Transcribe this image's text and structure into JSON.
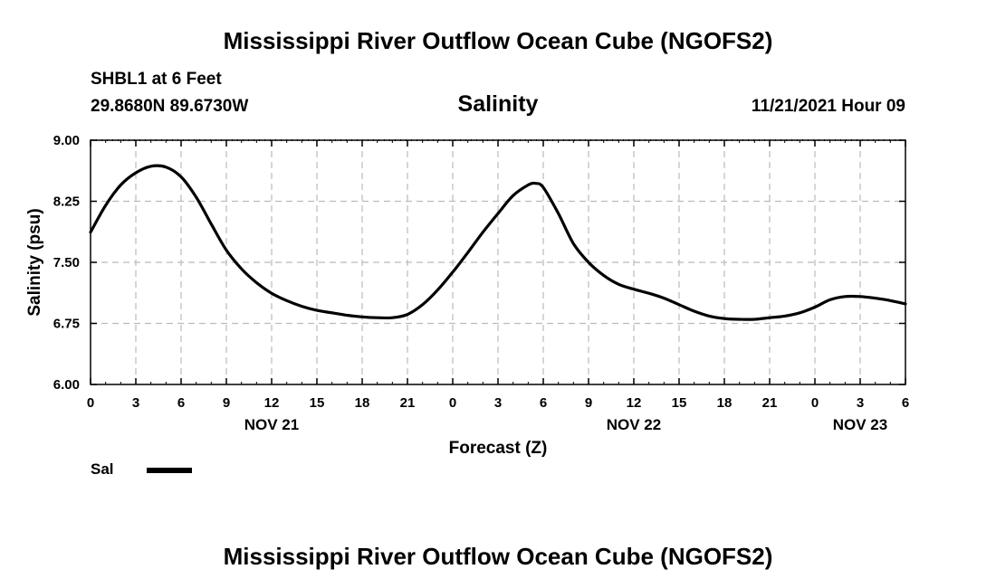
{
  "header": {
    "title": "Mississippi River Outflow Ocean Cube (NGOFS2)",
    "station": "SHBL1 at 6 Feet",
    "coordinates": "29.8680N  89.6730W",
    "datetime": "11/21/2021 Hour 09"
  },
  "footer": {
    "title": "Mississippi River Outflow Ocean Cube (NGOFS2)"
  },
  "legend": {
    "label": "Sal"
  },
  "chart_data": {
    "type": "line",
    "title": "Salinity",
    "xlabel": "Forecast (Z)",
    "ylabel": "Salinity (psu)",
    "xlim": [
      0,
      54
    ],
    "ylim": [
      6.0,
      9.0
    ],
    "grid": true,
    "legend_position": "bottom-left",
    "x_ticks": [
      0,
      3,
      6,
      9,
      12,
      15,
      18,
      21,
      24,
      27,
      30,
      33,
      36,
      39,
      42,
      45,
      48,
      51,
      54
    ],
    "x_tick_labels": [
      "0",
      "3",
      "6",
      "9",
      "12",
      "15",
      "18",
      "21",
      "0",
      "3",
      "6",
      "9",
      "12",
      "15",
      "18",
      "21",
      "0",
      "3",
      "6"
    ],
    "y_ticks": [
      6.0,
      6.75,
      7.5,
      8.25,
      9.0
    ],
    "y_tick_labels": [
      "6.00",
      "6.75",
      "7.50",
      "8.25",
      "9.00"
    ],
    "date_labels": [
      {
        "x": 12,
        "label": "NOV 21"
      },
      {
        "x": 36,
        "label": "NOV 22"
      },
      {
        "x": 51,
        "label": "NOV 23"
      }
    ],
    "series": [
      {
        "name": "Sal",
        "color": "#000000",
        "x": [
          0,
          1,
          2,
          3,
          4,
          5,
          6,
          7,
          8,
          9,
          10,
          11,
          12,
          13,
          14,
          15,
          16,
          17,
          18,
          19,
          20,
          21,
          22,
          23,
          24,
          25,
          26,
          27,
          28,
          29,
          29.5,
          30,
          31,
          32,
          33,
          34,
          35,
          36,
          37,
          38,
          39,
          40,
          41,
          42,
          43,
          44,
          45,
          46,
          47,
          48,
          49,
          50,
          51,
          52,
          53,
          54
        ],
        "values": [
          7.87,
          8.2,
          8.45,
          8.6,
          8.68,
          8.67,
          8.55,
          8.3,
          7.97,
          7.65,
          7.42,
          7.25,
          7.12,
          7.03,
          6.96,
          6.91,
          6.88,
          6.85,
          6.83,
          6.82,
          6.82,
          6.86,
          6.98,
          7.16,
          7.38,
          7.62,
          7.87,
          8.1,
          8.32,
          8.45,
          8.47,
          8.42,
          8.1,
          7.73,
          7.5,
          7.34,
          7.23,
          7.17,
          7.12,
          7.06,
          6.98,
          6.9,
          6.84,
          6.81,
          6.8,
          6.8,
          6.82,
          6.84,
          6.88,
          6.95,
          7.04,
          7.08,
          7.08,
          7.06,
          7.03,
          6.99
        ]
      }
    ]
  }
}
